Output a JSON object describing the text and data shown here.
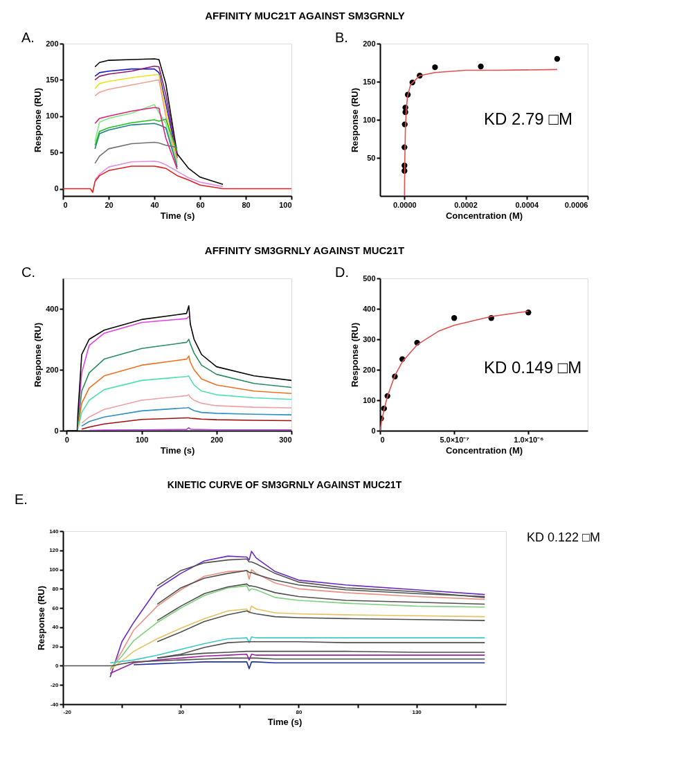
{
  "chart_data": [
    {
      "type": "line",
      "title": "AFFINITY MUC21T AGAINST SM3GRNLY",
      "xlabel": "Time (s)",
      "ylabel": "Response (RU)",
      "annotations": [
        "A."
      ],
      "xlim": [
        0,
        100
      ],
      "xticks": [
        0,
        20,
        40,
        60,
        80,
        100
      ],
      "ylim": [
        -10,
        200
      ],
      "yticks": [
        0,
        50,
        100,
        150,
        200
      ],
      "marker": "none",
      "line_style": "solid",
      "x": [
        0,
        10,
        12,
        13,
        14,
        16,
        20,
        30,
        40,
        42,
        45,
        50,
        55,
        60,
        70,
        80,
        100
      ],
      "series": [
        {
          "color": "#000000",
          "values": [
            null,
            null,
            null,
            null,
            168,
            174,
            177,
            178,
            179,
            178,
            145,
            48,
            28,
            16,
            6,
            null,
            null
          ]
        },
        {
          "color": "#1a1ad0",
          "values": [
            null,
            null,
            null,
            null,
            155,
            160,
            162,
            165,
            165,
            160,
            118,
            42,
            null,
            null,
            null,
            null,
            null
          ]
        },
        {
          "color": "#8b1a6b",
          "values": [
            null,
            null,
            null,
            null,
            150,
            155,
            158,
            162,
            169,
            168,
            130,
            45,
            null,
            null,
            null,
            null,
            null
          ]
        },
        {
          "color": "#f0e020",
          "values": [
            null,
            null,
            null,
            null,
            138,
            145,
            148,
            153,
            157,
            157,
            108,
            39,
            null,
            null,
            null,
            null,
            null
          ]
        },
        {
          "color": "#f0a090",
          "values": [
            null,
            null,
            null,
            null,
            128,
            133,
            137,
            143,
            149,
            150,
            100,
            36,
            null,
            null,
            null,
            null,
            null
          ]
        },
        {
          "color": "#80e880",
          "values": [
            null,
            null,
            null,
            null,
            65,
            92,
            97,
            104,
            116,
            105,
            90,
            33,
            null,
            null,
            null,
            null,
            null
          ]
        },
        {
          "color": "#208080",
          "values": [
            null,
            null,
            null,
            null,
            55,
            76,
            81,
            88,
            90,
            88,
            84,
            30,
            null,
            null,
            null,
            null,
            null
          ]
        },
        {
          "color": "#20c020",
          "values": [
            null,
            null,
            null,
            null,
            60,
            79,
            84,
            91,
            95,
            93,
            96,
            51,
            null,
            null,
            null,
            null,
            null
          ]
        },
        {
          "color": "#e0207a",
          "values": [
            null,
            null,
            null,
            null,
            90,
            97,
            100,
            107,
            112,
            111,
            70,
            27,
            null,
            null,
            null,
            null,
            null
          ]
        },
        {
          "color": "#707070",
          "values": [
            null,
            null,
            null,
            null,
            35,
            45,
            55,
            62,
            64,
            63,
            60,
            57,
            null,
            null,
            null,
            null,
            null
          ]
        },
        {
          "color": "#e090e0",
          "values": [
            null,
            null,
            null,
            null,
            12,
            20,
            30,
            37,
            38,
            37,
            33,
            24,
            15,
            9,
            3,
            null,
            null
          ]
        },
        {
          "color": "#e02020",
          "values": [
            0,
            0,
            0,
            -5,
            10,
            18,
            25,
            31,
            31,
            30,
            28,
            18,
            12,
            5,
            0,
            0,
            0
          ]
        }
      ]
    },
    {
      "type": "scatter",
      "xlabel": "Concentration (M)",
      "ylabel": "Response (RU)",
      "annotations": [
        "B.",
        "KD 2.79 □M"
      ],
      "marker": "circle",
      "xlim": [
        -8e-05,
        0.0006
      ],
      "xticks": [
        {
          "value": 0,
          "label": "0.0000"
        },
        {
          "value": 0.0002,
          "label": "0.0002"
        },
        {
          "value": 0.0004,
          "label": "0.0004"
        },
        {
          "value": 0.0006,
          "label": "0.0006"
        }
      ],
      "ylim": [
        0,
        200
      ],
      "yticks": [
        50,
        100,
        150,
        200
      ],
      "series": [
        {
          "type": "scatter",
          "color": "#000000",
          "x": [
            0,
            0,
            0,
            1e-06,
            3e-06,
            3e-06,
            1.1e-05,
            2.6e-05,
            5e-05,
            0.0001,
            0.00025,
            0.0005
          ],
          "values": [
            33,
            40,
            64,
            94,
            110,
            116,
            133,
            149,
            158,
            169,
            170,
            180
          ]
        },
        {
          "type": "line",
          "marker": "none",
          "color": "#e05050",
          "x": [
            0,
            1e-06,
            3e-06,
            6e-06,
            1e-05,
            2e-05,
            5e-05,
            0.0001,
            0.0002,
            0.0003,
            0.0005
          ],
          "values": [
            0,
            44,
            87,
            114,
            131,
            146,
            158,
            162,
            165,
            165,
            166
          ]
        }
      ]
    },
    {
      "type": "line",
      "title": "AFFINITY SM3GRNLY AGAINST MUC21T",
      "xlabel": "Time (s)",
      "ylabel": "Response (RU)",
      "annotations": [
        "C."
      ],
      "xlim": [
        -5,
        300
      ],
      "xticks": [
        0,
        100,
        200,
        300
      ],
      "ylim": [
        0,
        500
      ],
      "yticks": [
        0,
        200,
        400
      ],
      "marker": "none",
      "line_style": "solid",
      "x": [
        0,
        14,
        15,
        20,
        30,
        50,
        100,
        160,
        163,
        165,
        170,
        180,
        200,
        250,
        300
      ],
      "series": [
        {
          "color": "#e040e0",
          "x": [
            15,
            20,
            30,
            50,
            100,
            160,
            163
          ],
          "values": [
            40,
            190,
            280,
            320,
            355,
            368,
            375
          ]
        },
        {
          "color": "#000000",
          "values": [
            0,
            0,
            60,
            250,
            300,
            330,
            365,
            385,
            410,
            350,
            300,
            250,
            210,
            180,
            165
          ]
        },
        {
          "color": "#2a8a60",
          "x": [
            15,
            20,
            30,
            50,
            100,
            160,
            163,
            165,
            170,
            180,
            200,
            250,
            300
          ],
          "values": [
            20,
            130,
            190,
            235,
            270,
            290,
            300,
            285,
            255,
            215,
            185,
            155,
            142
          ]
        },
        {
          "color": "#f07020",
          "x": [
            15,
            20,
            30,
            50,
            100,
            160,
            163,
            165,
            170,
            180,
            200,
            250,
            300
          ],
          "values": [
            10,
            90,
            140,
            180,
            215,
            235,
            245,
            225,
            200,
            170,
            150,
            130,
            122
          ]
        },
        {
          "color": "#50e0b0",
          "x": [
            15,
            20,
            30,
            50,
            100,
            160,
            163,
            165,
            170,
            180,
            200,
            250,
            300
          ],
          "values": [
            5,
            60,
            100,
            135,
            165,
            178,
            180,
            170,
            150,
            130,
            118,
            108,
            103
          ]
        },
        {
          "color": "#f0a0a0",
          "x": [
            20,
            30,
            50,
            100,
            160,
            163,
            165,
            170,
            180,
            200,
            250,
            300
          ],
          "values": [
            25,
            45,
            70,
            100,
            115,
            118,
            110,
            100,
            90,
            82,
            77,
            75
          ]
        },
        {
          "color": "#3090c0",
          "x": [
            20,
            30,
            50,
            100,
            160,
            163,
            165,
            170,
            180,
            200,
            250,
            300
          ],
          "values": [
            15,
            30,
            45,
            65,
            75,
            76,
            72,
            66,
            60,
            57,
            54,
            52
          ]
        },
        {
          "color": "#a01010",
          "x": [
            20,
            30,
            50,
            100,
            160,
            163,
            165,
            170,
            180,
            200,
            250,
            300
          ],
          "values": [
            5,
            12,
            22,
            37,
            42,
            42,
            41,
            40,
            38,
            36,
            34,
            33
          ]
        },
        {
          "color": "#b040d0",
          "x": [
            30,
            50,
            100,
            160,
            163,
            165,
            170,
            180,
            200,
            250,
            300
          ],
          "values": [
            1,
            2,
            3,
            4,
            10,
            5,
            4,
            4,
            3,
            3,
            3
          ]
        }
      ]
    },
    {
      "type": "scatter",
      "xlabel": "Concentration (M)",
      "ylabel": "Response (RU)",
      "annotations": [
        "D.",
        "KD  0.149 □M"
      ],
      "marker": "circle",
      "xlim": [
        0,
        1.4e-06
      ],
      "xticks": [
        {
          "value": 0,
          "label": "0"
        },
        {
          "value": 5e-07,
          "label": "5.0×10⁻⁷"
        },
        {
          "value": 1e-06,
          "label": "1.0×10⁻⁶"
        }
      ],
      "ylim": [
        0,
        500
      ],
      "yticks": [
        0,
        100,
        200,
        300,
        400,
        500
      ],
      "series": [
        {
          "type": "scatter",
          "color": "#000000",
          "x": [
            7e-09,
            2.7e-08,
            5e-08,
            1e-07,
            1.5e-07,
            2.5e-07,
            5e-07,
            7.5e-07,
            1e-06
          ],
          "values": [
            40,
            73,
            114,
            178,
            235,
            289,
            370,
            370,
            388
          ]
        },
        {
          "type": "line",
          "marker": "none",
          "color": "#e05050",
          "x": [
            0,
            1e-08,
            2.5e-08,
            5e-08,
            1e-07,
            1.5e-07,
            2.5e-07,
            4e-07,
            5e-07,
            7.5e-07,
            1e-06
          ],
          "values": [
            0,
            28,
            65,
            113,
            181,
            226,
            282,
            328,
            346,
            375,
            392
          ]
        }
      ]
    },
    {
      "type": "line",
      "title": "KINETIC CURVE OF SM3GRNLY AGAINST MUC21T",
      "xlabel": "Time (s)",
      "ylabel": "Response (RU)",
      "annotations": [
        "E.",
        "KD   0.122 □M"
      ],
      "xlim": [
        -20,
        168
      ],
      "xticks": [
        -20,
        {
          "value": 5,
          "label": null
        },
        30,
        {
          "value": 55,
          "label": null
        },
        80,
        {
          "value": 105,
          "label": null
        },
        130,
        {
          "value": 155,
          "label": null
        }
      ],
      "ylim": [
        -40,
        140
      ],
      "yticks": [
        -40,
        -20,
        0,
        20,
        40,
        60,
        80,
        100,
        120,
        140
      ],
      "marker": "none",
      "line_style": "solid",
      "x": [
        -20,
        -2,
        0,
        1,
        5,
        10,
        20,
        30,
        40,
        50,
        58,
        59,
        60,
        62,
        70,
        80,
        100,
        130,
        159
      ],
      "series": [
        {
          "color": "#6a2ac0",
          "values": [
            null,
            null,
            -12,
            null,
            25,
            45,
            80,
            96,
            109,
            114,
            113,
            110,
            119,
            112,
            98,
            89,
            84,
            79,
            74
          ]
        },
        {
          "color": "#505050",
          "values": [
            null,
            null,
            null,
            null,
            null,
            null,
            83,
            99,
            107,
            110,
            111,
            108,
            108,
            106,
            96,
            87,
            81,
            77,
            71
          ]
        },
        {
          "color": "#e89080",
          "values": [
            null,
            null,
            -5,
            null,
            15,
            37,
            62,
            79,
            93,
            98,
            99,
            90,
            100,
            96,
            86,
            80,
            76,
            72,
            69
          ]
        },
        {
          "color": "#505050",
          "values": [
            null,
            null,
            null,
            null,
            null,
            null,
            64,
            81,
            91,
            96,
            99,
            97,
            97,
            95,
            89,
            84,
            79,
            75,
            72
          ]
        },
        {
          "color": "#80d080",
          "values": [
            null,
            null,
            -3,
            null,
            10,
            26,
            45,
            60,
            73,
            81,
            83,
            78,
            80,
            79,
            71,
            68,
            65,
            62,
            61
          ]
        },
        {
          "color": "#505050",
          "values": [
            null,
            null,
            null,
            null,
            null,
            null,
            47,
            62,
            75,
            82,
            85,
            83,
            83,
            82,
            76,
            72,
            68,
            66,
            64
          ]
        },
        {
          "color": "#e8c060",
          "values": [
            null,
            null,
            -4,
            null,
            5,
            15,
            28,
            39,
            49,
            57,
            59,
            55,
            62,
            59,
            55,
            54,
            53,
            52,
            51
          ]
        },
        {
          "color": "#505050",
          "values": [
            null,
            null,
            null,
            null,
            null,
            null,
            25,
            35,
            46,
            53,
            57,
            56,
            55,
            54,
            51,
            50,
            49,
            48,
            47
          ]
        },
        {
          "color": "#40c8c8",
          "values": [
            null,
            null,
            3,
            null,
            null,
            6,
            11,
            17,
            23,
            28,
            29,
            24,
            30,
            29,
            29,
            29,
            29,
            29,
            29
          ]
        },
        {
          "color": "#505050",
          "values": [
            null,
            null,
            null,
            null,
            null,
            null,
            8,
            12,
            19,
            24,
            25,
            25,
            25,
            25,
            25,
            25,
            24,
            24,
            24
          ]
        },
        {
          "color": "#a020a0",
          "values": [
            null,
            null,
            -8,
            null,
            null,
            3,
            6,
            8,
            10,
            11,
            12,
            6,
            12,
            11,
            11,
            11,
            11,
            11,
            11
          ]
        },
        {
          "color": "#505050",
          "values": [
            null,
            null,
            null,
            null,
            null,
            null,
            8,
            11,
            13,
            14,
            15,
            15,
            15,
            15,
            15,
            15,
            15,
            14,
            14
          ]
        },
        {
          "color": "#2030a0",
          "values": [
            null,
            null,
            null,
            null,
            null,
            1,
            2,
            3,
            4,
            4,
            4,
            -3,
            4,
            4,
            3,
            3,
            3,
            3,
            3
          ]
        },
        {
          "color": "#505050",
          "values": [
            0,
            0,
            0,
            0,
            2,
            4,
            5,
            6,
            7,
            8,
            8,
            8,
            8,
            8,
            7,
            7,
            7,
            7,
            7
          ]
        }
      ]
    }
  ]
}
